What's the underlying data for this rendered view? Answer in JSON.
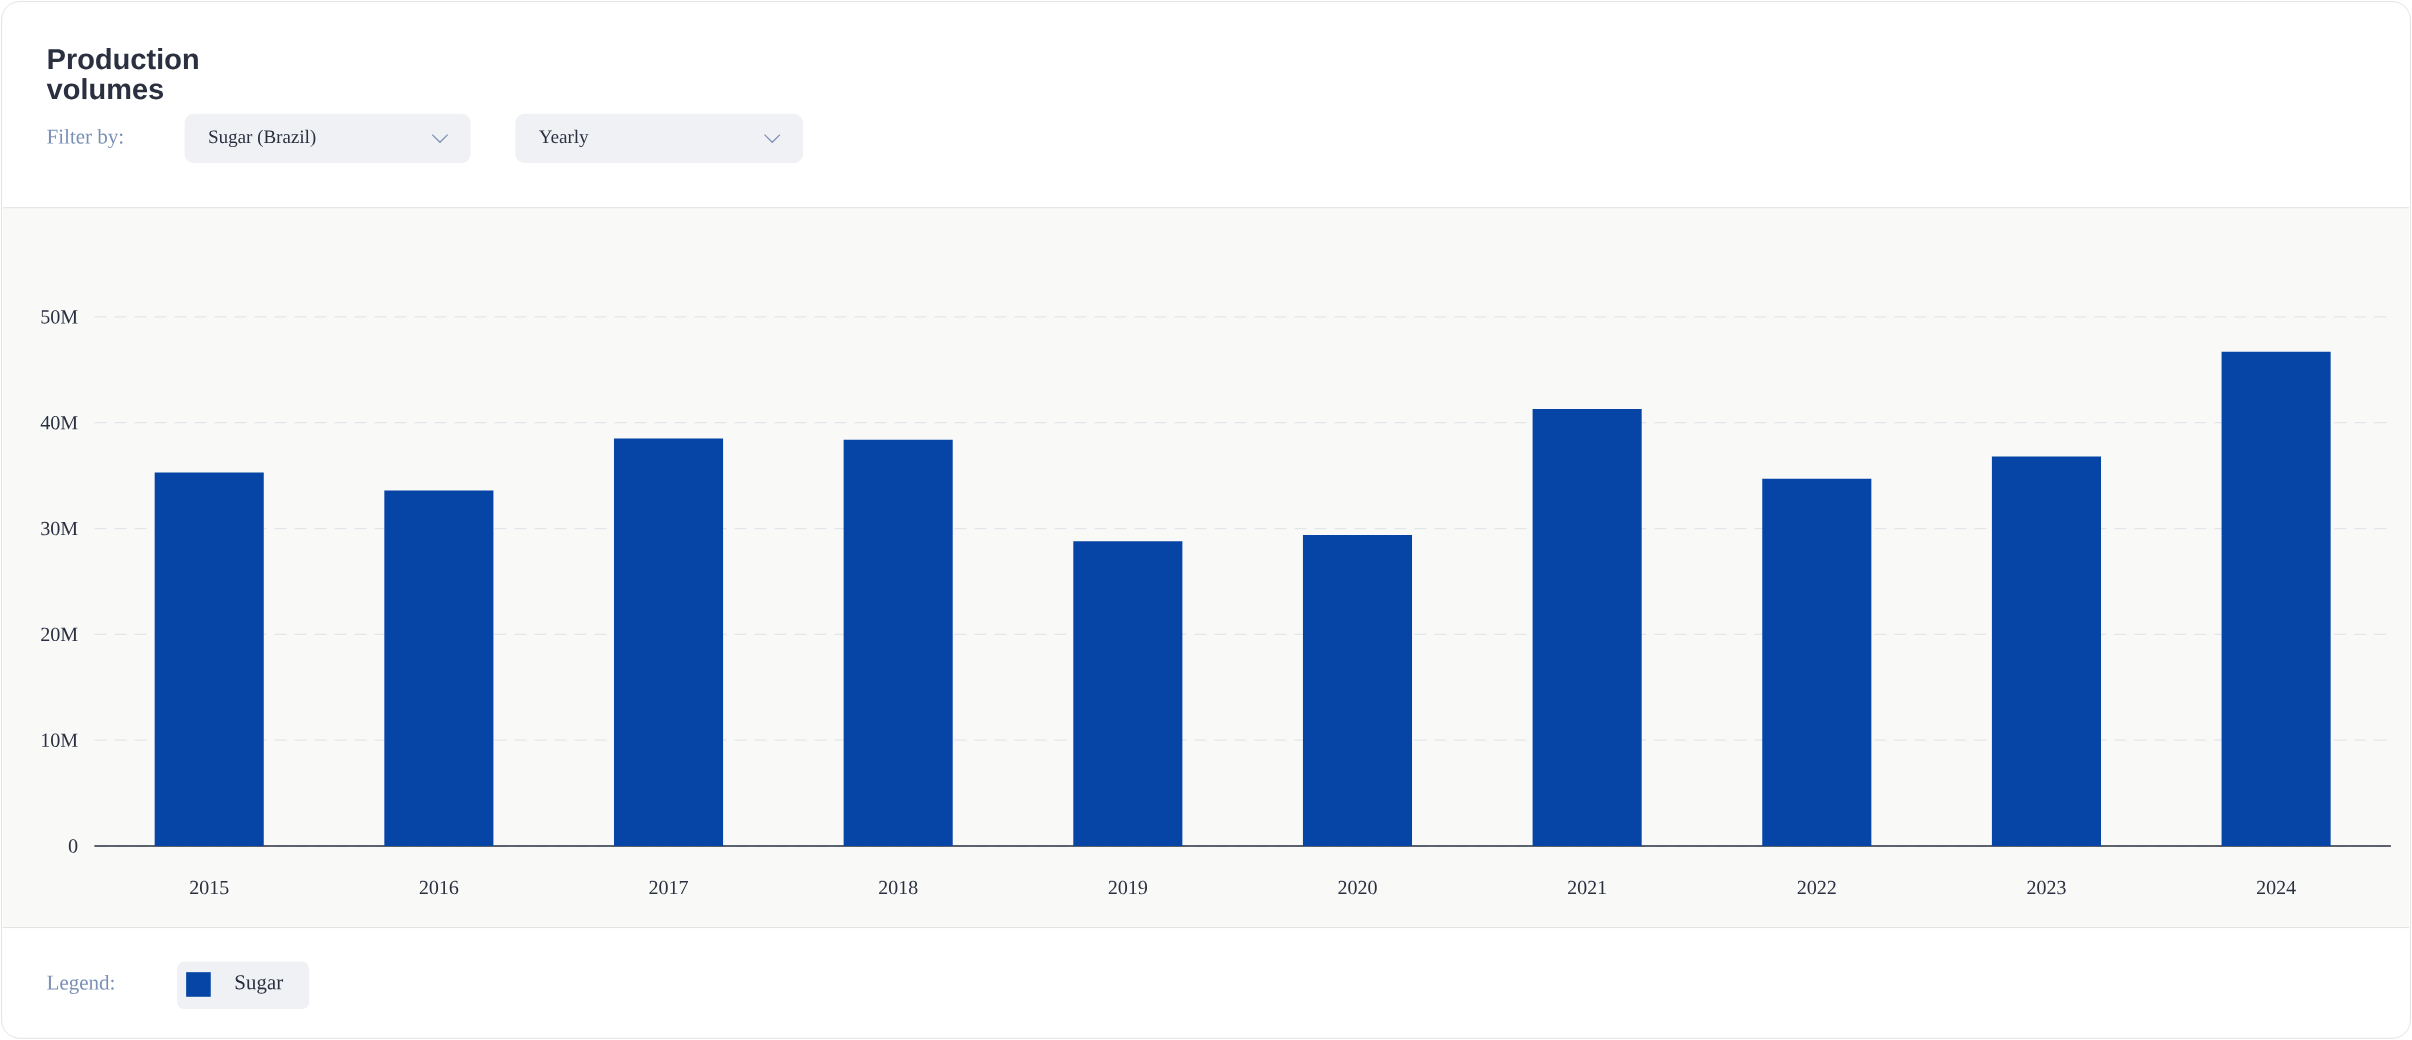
{
  "chart_data": {
    "type": "bar",
    "title": "Production volumes",
    "annotations": [
      "Filter by:",
      "Sugar (Brazil)",
      "Yearly"
    ],
    "categories": [
      "2015",
      "2016",
      "2017",
      "2018",
      "2019",
      "2020",
      "2021",
      "2022",
      "2023",
      "2024"
    ],
    "series": [
      {
        "name": "Sugar",
        "color": "#0645a5",
        "values": [
          35.3,
          33.6,
          38.5,
          38.4,
          28.8,
          29.4,
          41.3,
          34.7,
          36.8,
          46.7
        ]
      }
    ],
    "ylim": [
      0,
      50
    ],
    "yticks": [
      {
        "value": 0,
        "label": "0"
      },
      {
        "value": 10,
        "label": "10M"
      },
      {
        "value": 20,
        "label": "20M"
      },
      {
        "value": 30,
        "label": "30M"
      },
      {
        "value": 40,
        "label": "40M"
      },
      {
        "value": 50,
        "label": "50M"
      }
    ],
    "grid": "y",
    "legend": "bottom left",
    "legend_title": "Legend:"
  }
}
